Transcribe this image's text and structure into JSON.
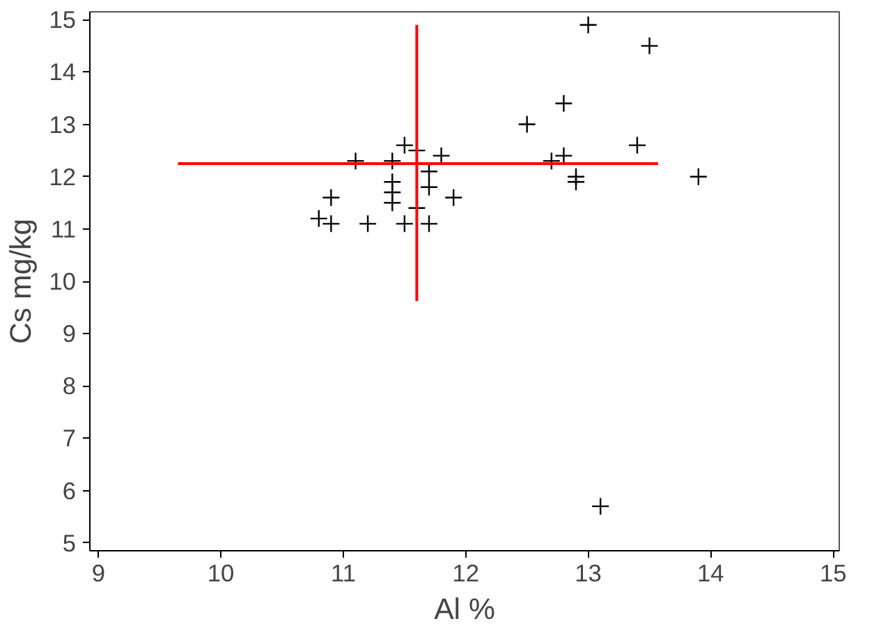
{
  "chart_data": {
    "type": "scatter",
    "xlabel": "Al %",
    "ylabel": "Cs mg/kg",
    "xlim": [
      8.93,
      15.05
    ],
    "ylim": [
      4.85,
      15.15
    ],
    "xticks": [
      9,
      10,
      11,
      12,
      13,
      14,
      15
    ],
    "yticks": [
      5,
      6,
      7,
      8,
      9,
      10,
      11,
      12,
      13,
      14,
      15
    ],
    "grid": false,
    "series": [
      {
        "marker": "cross",
        "color": "#000000",
        "x": [
          11.1,
          11.4,
          11.5,
          11.6,
          11.8,
          11.7,
          11.7,
          11.4,
          11.4,
          11.4,
          10.9,
          10.8,
          10.9,
          11.2,
          11.5,
          11.7,
          11.6,
          11.9,
          12.5,
          12.8,
          13.0,
          13.5,
          12.7,
          12.8,
          12.9,
          12.9,
          13.4,
          13.9,
          13.1
        ],
        "values": [
          12.3,
          12.3,
          12.6,
          12.5,
          12.4,
          12.1,
          11.8,
          11.9,
          11.7,
          11.5,
          11.6,
          11.2,
          11.1,
          11.1,
          11.1,
          11.1,
          11.4,
          11.6,
          13.0,
          13.4,
          14.9,
          14.5,
          12.3,
          12.4,
          12.0,
          11.9,
          12.6,
          12.0,
          5.7
        ]
      },
      {
        "type": "line",
        "color": "#ff0000",
        "x": [
          9.65,
          13.57
        ],
        "values": [
          12.25,
          12.25
        ]
      },
      {
        "type": "line",
        "color": "#ff0000",
        "x": [
          11.6,
          11.6
        ],
        "values": [
          9.62,
          14.9
        ]
      }
    ]
  }
}
